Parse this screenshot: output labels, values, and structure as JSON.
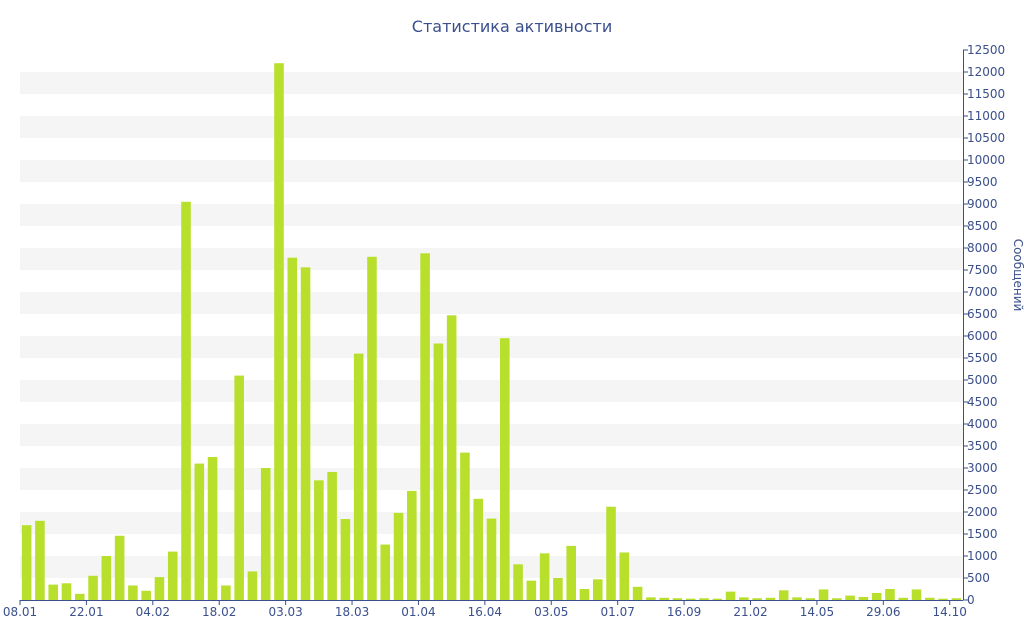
{
  "chart_data": {
    "type": "bar",
    "title": "Статистика активности",
    "ylabel": "Сообщений",
    "xlabel": "",
    "ylim": [
      0,
      12500
    ],
    "y_tick_step": 500,
    "grid": "alternating horizontal bands",
    "y_axis_side": "right",
    "colors": {
      "bar": "#b7df2b",
      "band": "#f5f5f5",
      "axis": "#3a4f8c",
      "text": "#3a4f8c"
    },
    "x_tick_labels": [
      {
        "index": 0,
        "label": "08.01"
      },
      {
        "index": 5,
        "label": "22.01"
      },
      {
        "index": 10,
        "label": "04.02"
      },
      {
        "index": 15,
        "label": "18.02"
      },
      {
        "index": 20,
        "label": "03.03"
      },
      {
        "index": 25,
        "label": "18.03"
      },
      {
        "index": 30,
        "label": "01.04"
      },
      {
        "index": 35,
        "label": "16.04"
      },
      {
        "index": 40,
        "label": "03.05"
      },
      {
        "index": 45,
        "label": "01.07"
      },
      {
        "index": 50,
        "label": "16.09"
      },
      {
        "index": 55,
        "label": "21.02"
      },
      {
        "index": 60,
        "label": "14.05"
      },
      {
        "index": 65,
        "label": "29.06"
      },
      {
        "index": 70,
        "label": "14.10"
      }
    ],
    "values": [
      1700,
      1800,
      350,
      380,
      140,
      550,
      1000,
      1460,
      330,
      210,
      520,
      1100,
      9050,
      3100,
      3250,
      330,
      5100,
      650,
      3000,
      12200,
      7780,
      7560,
      2720,
      2910,
      1840,
      5600,
      7800,
      1260,
      1980,
      2480,
      7880,
      5830,
      6470,
      3350,
      2300,
      1850,
      5950,
      810,
      440,
      1060,
      500,
      1230,
      250,
      470,
      2120,
      1080,
      300,
      60,
      50,
      40,
      30,
      40,
      30,
      190,
      60,
      40,
      50,
      220,
      60,
      40,
      240,
      40,
      100,
      70,
      160,
      250,
      50,
      240,
      50,
      30,
      40
    ]
  }
}
